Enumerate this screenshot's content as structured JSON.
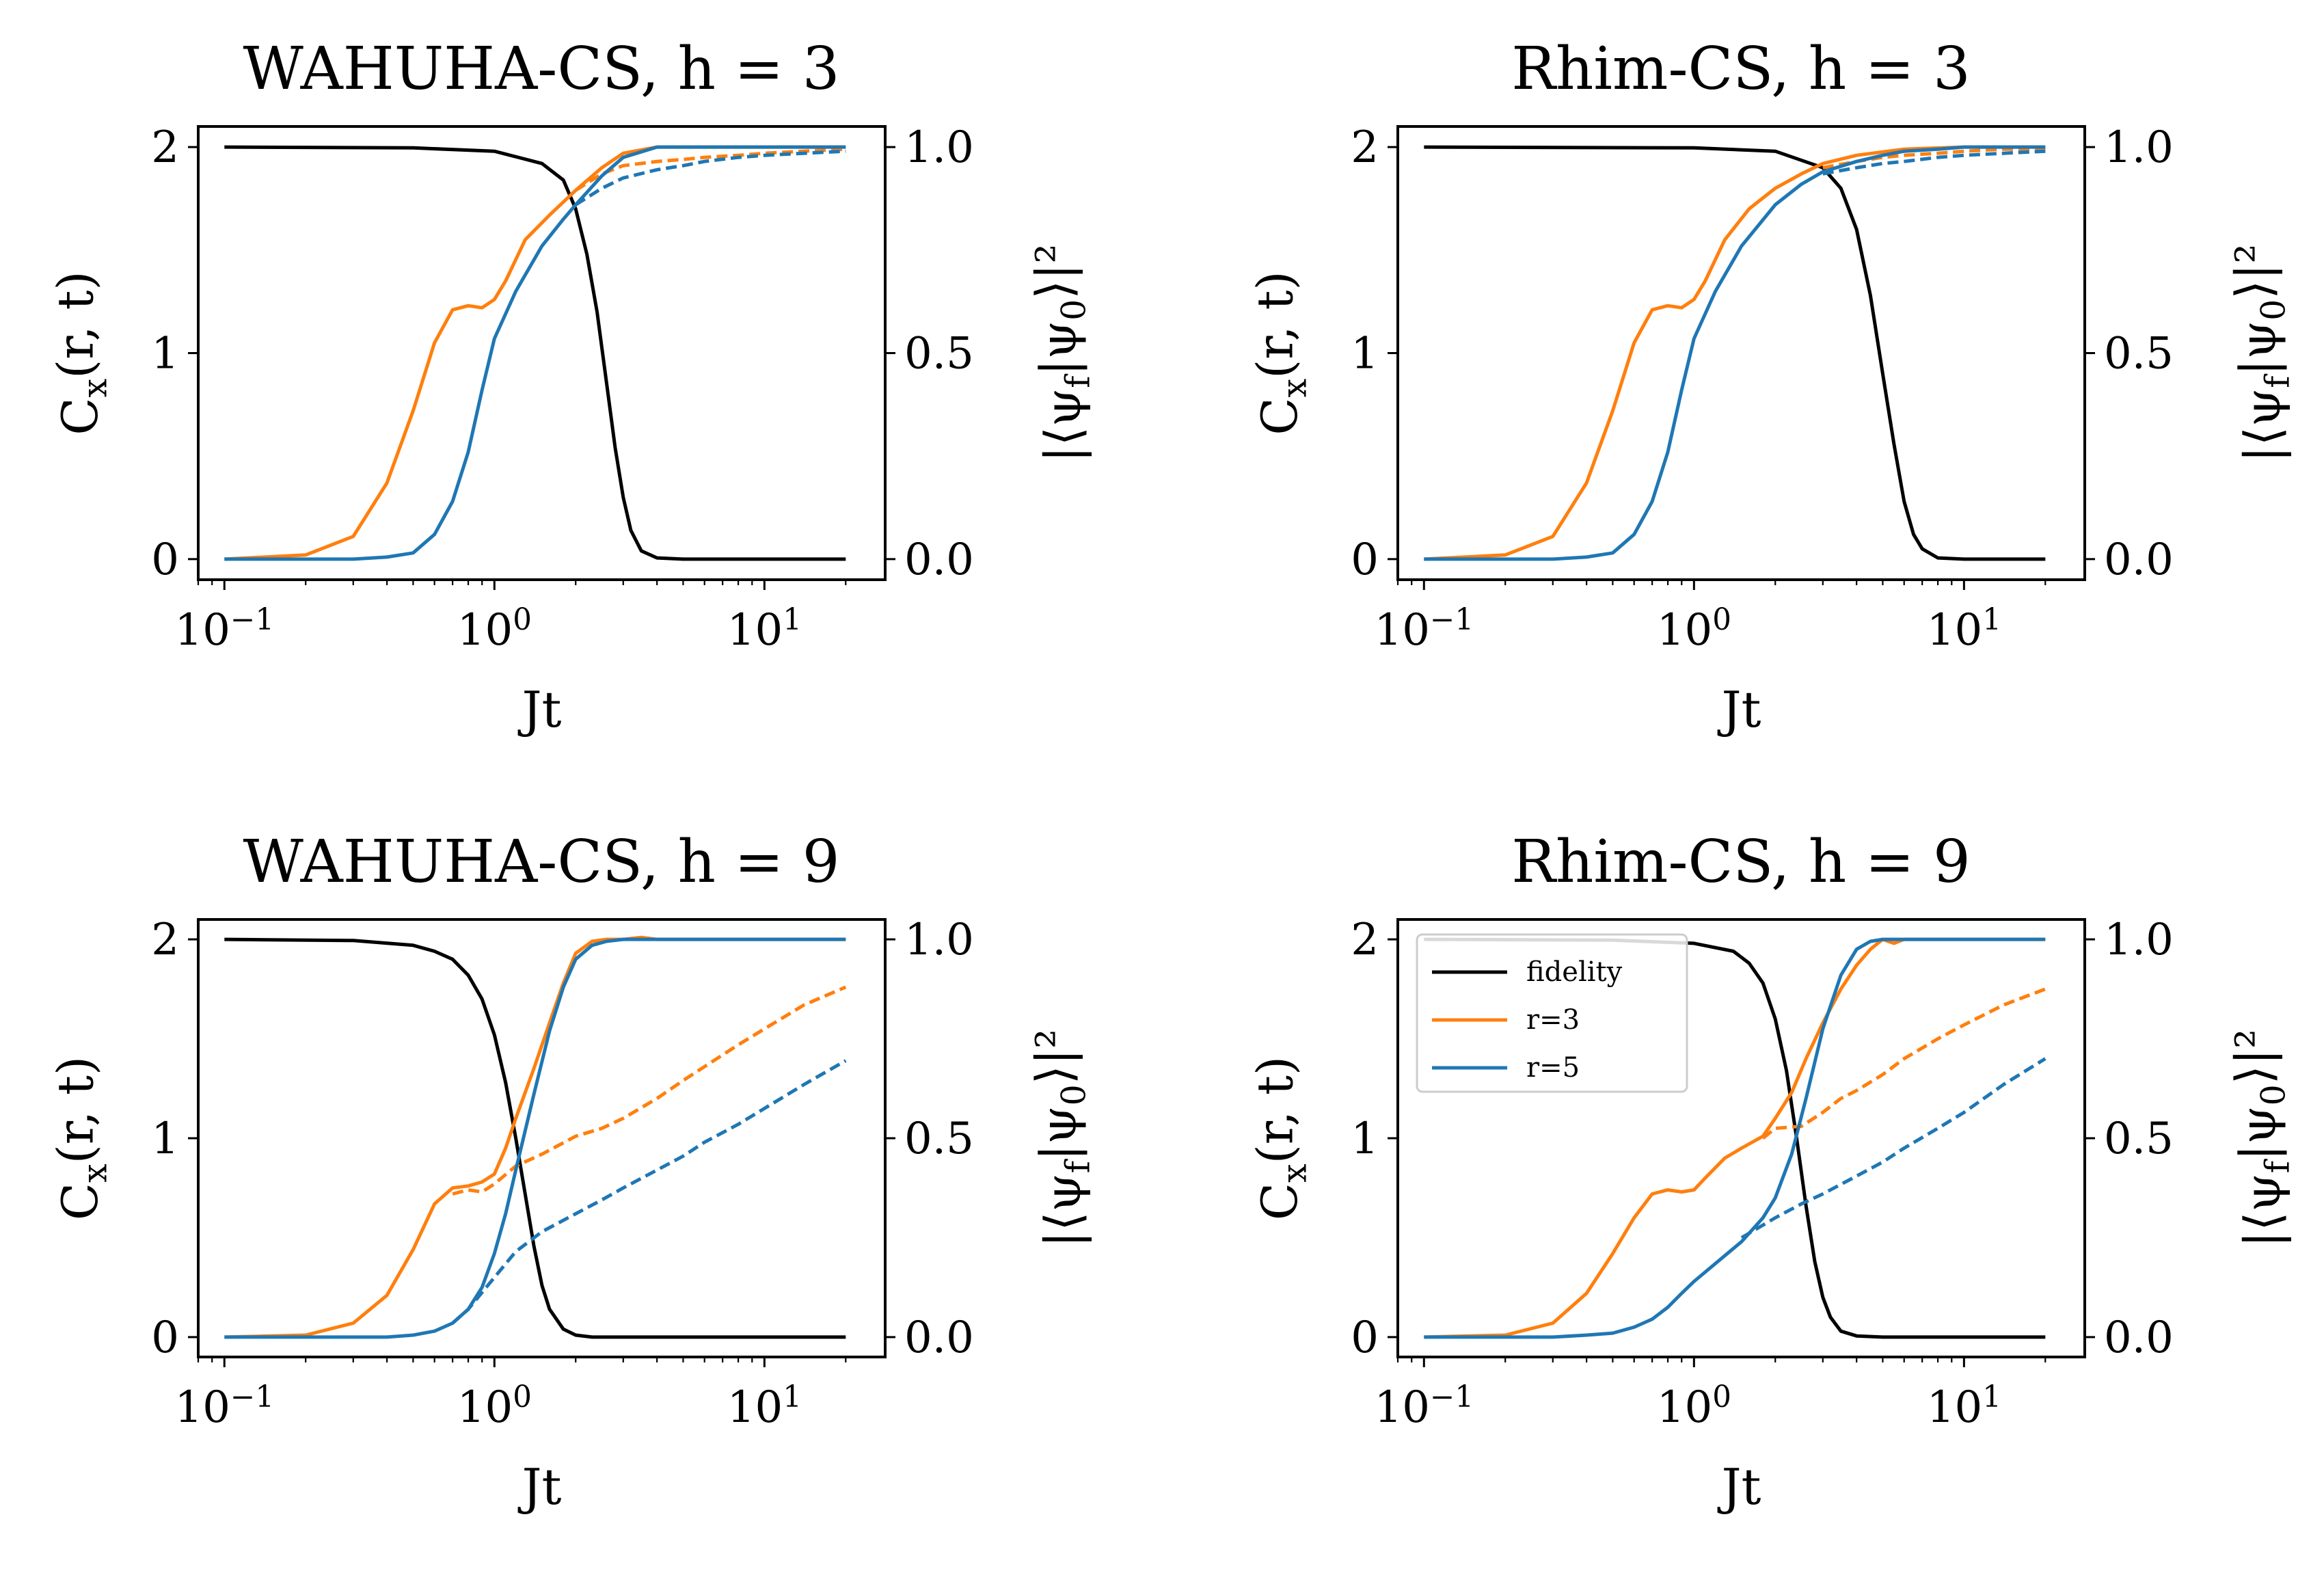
{
  "figure": {
    "legend_labels": [
      "fidelity",
      "r=3",
      "r=5"
    ],
    "colors": {
      "fidelity": "#000000",
      "r3": "#ff7f0e",
      "r5": "#1f77b4"
    }
  },
  "chart_data": [
    {
      "type": "line",
      "title": "WAHUHA-CS, h = 3",
      "xlabel": "Jt",
      "ylabel": "C_x(r, t)",
      "ylabel_right": "|⟨ψ_f|ψ_0⟩|²",
      "xscale": "log",
      "xlim": [
        0.08,
        28
      ],
      "ylim": [
        -0.1,
        2.1
      ],
      "ylim_right": [
        -0.05,
        1.05
      ],
      "xticks": [
        "10^−1",
        "10^0",
        "10^1"
      ],
      "yticks": [
        0,
        1,
        2
      ],
      "yticks_right": [
        "0.0",
        "0.5",
        "1.0"
      ],
      "legend": false,
      "series": [
        {
          "key": "fidelity",
          "axis": "right",
          "style": "solid",
          "color": "#000000",
          "x": [
            0.1,
            0.5,
            1.0,
            1.5,
            1.8,
            2.0,
            2.2,
            2.4,
            2.6,
            2.8,
            3.0,
            3.2,
            3.5,
            4.0,
            5.0,
            20
          ],
          "y": [
            1.0,
            0.998,
            0.99,
            0.96,
            0.92,
            0.85,
            0.74,
            0.6,
            0.43,
            0.27,
            0.15,
            0.07,
            0.02,
            0.003,
            0.0,
            0.0
          ]
        },
        {
          "key": "r3",
          "axis": "left",
          "style": "solid",
          "color": "#ff7f0e",
          "x": [
            0.1,
            0.2,
            0.3,
            0.4,
            0.5,
            0.6,
            0.7,
            0.8,
            0.9,
            1.0,
            1.1,
            1.3,
            1.6,
            2.0,
            2.5,
            3.0,
            4.0,
            6.0,
            10.0,
            20.0
          ],
          "y": [
            0.0,
            0.02,
            0.11,
            0.37,
            0.72,
            1.05,
            1.21,
            1.23,
            1.22,
            1.26,
            1.35,
            1.55,
            1.67,
            1.79,
            1.9,
            1.97,
            2.0,
            2.0,
            2.0,
            2.0
          ]
        },
        {
          "key": "r3",
          "axis": "left",
          "style": "dashed",
          "color": "#ff7f0e",
          "x": [
            2.0,
            2.5,
            3.0,
            4.0,
            5.0,
            6.0,
            8.0,
            10.0,
            14.0,
            20.0
          ],
          "y": [
            1.79,
            1.87,
            1.91,
            1.93,
            1.94,
            1.95,
            1.96,
            1.97,
            1.98,
            1.99
          ]
        },
        {
          "key": "r5",
          "axis": "left",
          "style": "solid",
          "color": "#1f77b4",
          "x": [
            0.1,
            0.3,
            0.4,
            0.5,
            0.6,
            0.7,
            0.8,
            0.9,
            1.0,
            1.2,
            1.5,
            1.8,
            2.0,
            2.5,
            3.0,
            4.0,
            6.0,
            10.0,
            20.0
          ],
          "y": [
            0.0,
            0.0,
            0.01,
            0.03,
            0.12,
            0.28,
            0.52,
            0.82,
            1.07,
            1.3,
            1.52,
            1.65,
            1.72,
            1.86,
            1.95,
            2.0,
            2.0,
            2.0,
            2.0
          ]
        },
        {
          "key": "r5",
          "axis": "left",
          "style": "dashed",
          "color": "#1f77b4",
          "x": [
            2.0,
            2.5,
            3.0,
            4.0,
            5.0,
            6.0,
            8.0,
            10.0,
            14.0,
            20.0
          ],
          "y": [
            1.72,
            1.8,
            1.85,
            1.89,
            1.91,
            1.93,
            1.95,
            1.96,
            1.97,
            1.98
          ]
        }
      ]
    },
    {
      "type": "line",
      "title": "Rhim-CS, h = 3",
      "xlabel": "Jt",
      "ylabel": "C_x(r, t)",
      "ylabel_right": "|⟨ψ_f|ψ_0⟩|²",
      "xscale": "log",
      "xlim": [
        0.08,
        28
      ],
      "ylim": [
        -0.1,
        2.1
      ],
      "ylim_right": [
        -0.05,
        1.05
      ],
      "xticks": [
        "10^−1",
        "10^0",
        "10^1"
      ],
      "yticks": [
        0,
        1,
        2
      ],
      "yticks_right": [
        "0.0",
        "0.5",
        "1.0"
      ],
      "legend": false,
      "series": [
        {
          "key": "fidelity",
          "axis": "right",
          "style": "solid",
          "color": "#000000",
          "x": [
            0.1,
            1.0,
            2.0,
            3.0,
            3.5,
            4.0,
            4.5,
            5.0,
            5.5,
            6.0,
            6.5,
            7.0,
            8.0,
            10.0,
            20.0
          ],
          "y": [
            1.0,
            0.998,
            0.99,
            0.95,
            0.9,
            0.8,
            0.64,
            0.45,
            0.28,
            0.14,
            0.06,
            0.025,
            0.003,
            0.0,
            0.0
          ]
        },
        {
          "key": "r3",
          "axis": "left",
          "style": "solid",
          "color": "#ff7f0e",
          "x": [
            0.1,
            0.2,
            0.3,
            0.4,
            0.5,
            0.6,
            0.7,
            0.8,
            0.9,
            1.0,
            1.1,
            1.3,
            1.6,
            2.0,
            2.5,
            3.0,
            4.0,
            6.0,
            10.0,
            20.0
          ],
          "y": [
            0.0,
            0.02,
            0.11,
            0.37,
            0.72,
            1.05,
            1.21,
            1.23,
            1.22,
            1.26,
            1.35,
            1.55,
            1.7,
            1.8,
            1.87,
            1.92,
            1.96,
            1.99,
            2.0,
            2.0
          ]
        },
        {
          "key": "r3",
          "axis": "left",
          "style": "dashed",
          "color": "#ff7f0e",
          "x": [
            3.0,
            4.0,
            5.0,
            6.0,
            8.0,
            10.0,
            14.0,
            20.0
          ],
          "y": [
            1.9,
            1.93,
            1.95,
            1.96,
            1.97,
            1.98,
            1.99,
            1.99
          ]
        },
        {
          "key": "r5",
          "axis": "left",
          "style": "solid",
          "color": "#1f77b4",
          "x": [
            0.1,
            0.3,
            0.4,
            0.5,
            0.6,
            0.7,
            0.8,
            0.9,
            1.0,
            1.2,
            1.5,
            2.0,
            2.5,
            3.0,
            4.0,
            5.0,
            6.0,
            8.0,
            10.0,
            20.0
          ],
          "y": [
            0.0,
            0.0,
            0.01,
            0.03,
            0.12,
            0.28,
            0.52,
            0.82,
            1.07,
            1.3,
            1.52,
            1.72,
            1.82,
            1.88,
            1.93,
            1.96,
            1.98,
            1.99,
            2.0,
            2.0
          ]
        },
        {
          "key": "r5",
          "axis": "left",
          "style": "dashed",
          "color": "#1f77b4",
          "x": [
            3.0,
            4.0,
            5.0,
            6.0,
            8.0,
            10.0,
            14.0,
            20.0
          ],
          "y": [
            1.87,
            1.9,
            1.92,
            1.93,
            1.95,
            1.96,
            1.97,
            1.98
          ]
        }
      ]
    },
    {
      "type": "line",
      "title": "WAHUHA-CS, h = 9",
      "xlabel": "Jt",
      "ylabel": "C_x(r, t)",
      "ylabel_right": "|⟨ψ_f|ψ_0⟩|²",
      "xscale": "log",
      "xlim": [
        0.08,
        28
      ],
      "ylim": [
        -0.1,
        2.1
      ],
      "ylim_right": [
        -0.05,
        1.05
      ],
      "xticks": [
        "10^−1",
        "10^0",
        "10^1"
      ],
      "yticks": [
        0,
        1,
        2
      ],
      "yticks_right": [
        "0.0",
        "0.5",
        "1.0"
      ],
      "legend": false,
      "series": [
        {
          "key": "fidelity",
          "axis": "right",
          "style": "solid",
          "color": "#000000",
          "x": [
            0.1,
            0.3,
            0.5,
            0.6,
            0.7,
            0.8,
            0.9,
            1.0,
            1.1,
            1.2,
            1.3,
            1.4,
            1.5,
            1.6,
            1.8,
            2.0,
            2.3,
            3.0,
            20.0
          ],
          "y": [
            1.0,
            0.997,
            0.985,
            0.97,
            0.95,
            0.91,
            0.85,
            0.76,
            0.64,
            0.5,
            0.36,
            0.23,
            0.13,
            0.07,
            0.02,
            0.005,
            0.0,
            0.0,
            0.0
          ]
        },
        {
          "key": "r3",
          "axis": "left",
          "style": "solid",
          "color": "#ff7f0e",
          "x": [
            0.1,
            0.2,
            0.3,
            0.4,
            0.5,
            0.6,
            0.7,
            0.8,
            0.9,
            1.0,
            1.1,
            1.2,
            1.4,
            1.6,
            1.8,
            2.0,
            2.3,
            2.6,
            3.0,
            3.5,
            4.0,
            5.0,
            10.0,
            20.0
          ],
          "y": [
            0.0,
            0.01,
            0.07,
            0.21,
            0.44,
            0.67,
            0.75,
            0.76,
            0.78,
            0.82,
            0.95,
            1.1,
            1.35,
            1.58,
            1.78,
            1.93,
            1.99,
            2.0,
            2.0,
            2.01,
            2.0,
            2.0,
            2.0,
            2.0
          ]
        },
        {
          "key": "r3",
          "axis": "left",
          "style": "dashed",
          "color": "#ff7f0e",
          "x": [
            0.7,
            0.8,
            0.9,
            1.0,
            1.2,
            1.5,
            2.0,
            2.5,
            3.0,
            4.0,
            5.0,
            6.0,
            8.0,
            10.0,
            14.0,
            20.0
          ],
          "y": [
            0.72,
            0.74,
            0.73,
            0.77,
            0.86,
            0.92,
            1.01,
            1.05,
            1.1,
            1.2,
            1.29,
            1.36,
            1.47,
            1.55,
            1.67,
            1.76
          ]
        },
        {
          "key": "r5",
          "axis": "left",
          "style": "solid",
          "color": "#1f77b4",
          "x": [
            0.1,
            0.4,
            0.5,
            0.6,
            0.7,
            0.8,
            0.9,
            1.0,
            1.1,
            1.2,
            1.4,
            1.6,
            1.8,
            2.0,
            2.3,
            2.6,
            3.0,
            3.5,
            4.0,
            5.0,
            10.0,
            20.0
          ],
          "y": [
            0.0,
            0.0,
            0.01,
            0.03,
            0.07,
            0.14,
            0.25,
            0.42,
            0.62,
            0.84,
            1.22,
            1.54,
            1.76,
            1.9,
            1.97,
            1.99,
            2.0,
            2.0,
            2.0,
            2.0,
            2.0,
            2.0
          ]
        },
        {
          "key": "r5",
          "axis": "left",
          "style": "dashed",
          "color": "#1f77b4",
          "x": [
            0.7,
            0.8,
            1.0,
            1.2,
            1.5,
            2.0,
            2.5,
            3.0,
            4.0,
            5.0,
            6.0,
            8.0,
            10.0,
            14.0,
            20.0
          ],
          "y": [
            0.07,
            0.14,
            0.3,
            0.43,
            0.53,
            0.62,
            0.69,
            0.75,
            0.84,
            0.91,
            0.98,
            1.07,
            1.15,
            1.27,
            1.39
          ]
        }
      ]
    },
    {
      "type": "line",
      "title": "Rhim-CS, h = 9",
      "xlabel": "Jt",
      "ylabel": "C_x(r, t)",
      "ylabel_right": "|⟨ψ_f|ψ_0⟩|²",
      "xscale": "log",
      "xlim": [
        0.08,
        28
      ],
      "ylim": [
        -0.1,
        2.1
      ],
      "ylim_right": [
        -0.05,
        1.05
      ],
      "xticks": [
        "10^−1",
        "10^0",
        "10^1"
      ],
      "yticks": [
        0,
        1,
        2
      ],
      "yticks_right": [
        "0.0",
        "0.5",
        "1.0"
      ],
      "legend": true,
      "legend_loc": "upper left",
      "series": [
        {
          "key": "fidelity",
          "axis": "right",
          "style": "solid",
          "color": "#000000",
          "x": [
            0.1,
            0.5,
            1.0,
            1.4,
            1.6,
            1.8,
            2.0,
            2.2,
            2.4,
            2.6,
            2.8,
            3.0,
            3.2,
            3.5,
            4.0,
            5.0,
            20.0
          ],
          "y": [
            1.0,
            0.998,
            0.99,
            0.97,
            0.94,
            0.89,
            0.8,
            0.67,
            0.5,
            0.33,
            0.19,
            0.1,
            0.05,
            0.015,
            0.003,
            0.0,
            0.0
          ]
        },
        {
          "key": "r3",
          "axis": "left",
          "style": "solid",
          "color": "#ff7f0e",
          "x": [
            0.1,
            0.2,
            0.3,
            0.4,
            0.5,
            0.6,
            0.7,
            0.8,
            0.9,
            1.0,
            1.1,
            1.3,
            1.5,
            1.8,
            2.0,
            2.3,
            2.6,
            3.0,
            3.5,
            4.0,
            4.5,
            5.0,
            5.5,
            6.0,
            8.0,
            10.0,
            20.0
          ],
          "y": [
            0.0,
            0.01,
            0.07,
            0.22,
            0.42,
            0.6,
            0.72,
            0.74,
            0.73,
            0.74,
            0.8,
            0.9,
            0.95,
            1.01,
            1.1,
            1.23,
            1.4,
            1.58,
            1.75,
            1.87,
            1.95,
            2.0,
            1.98,
            2.0,
            2.0,
            2.0,
            2.0
          ]
        },
        {
          "key": "r3",
          "axis": "left",
          "style": "dashed",
          "color": "#ff7f0e",
          "x": [
            1.8,
            2.0,
            2.5,
            3.0,
            3.5,
            4.0,
            5.0,
            6.0,
            8.0,
            10.0,
            14.0,
            20.0
          ],
          "y": [
            1.0,
            1.05,
            1.06,
            1.13,
            1.2,
            1.24,
            1.32,
            1.4,
            1.5,
            1.57,
            1.67,
            1.75
          ]
        },
        {
          "key": "r5",
          "axis": "left",
          "style": "solid",
          "color": "#1f77b4",
          "x": [
            0.1,
            0.3,
            0.4,
            0.5,
            0.6,
            0.7,
            0.8,
            0.9,
            1.0,
            1.2,
            1.5,
            1.8,
            2.0,
            2.3,
            2.6,
            3.0,
            3.5,
            4.0,
            4.5,
            5.0,
            6.0,
            10.0,
            20.0
          ],
          "y": [
            0.0,
            0.0,
            0.01,
            0.02,
            0.05,
            0.09,
            0.15,
            0.22,
            0.28,
            0.37,
            0.48,
            0.6,
            0.7,
            0.92,
            1.2,
            1.55,
            1.82,
            1.95,
            1.99,
            2.0,
            2.0,
            2.0,
            2.0
          ]
        },
        {
          "key": "r5",
          "axis": "left",
          "style": "dashed",
          "color": "#1f77b4",
          "x": [
            1.5,
            2.0,
            2.5,
            3.0,
            4.0,
            5.0,
            6.0,
            8.0,
            10.0,
            14.0,
            20.0
          ],
          "y": [
            0.5,
            0.6,
            0.67,
            0.72,
            0.81,
            0.88,
            0.95,
            1.05,
            1.13,
            1.27,
            1.4
          ]
        }
      ]
    }
  ]
}
